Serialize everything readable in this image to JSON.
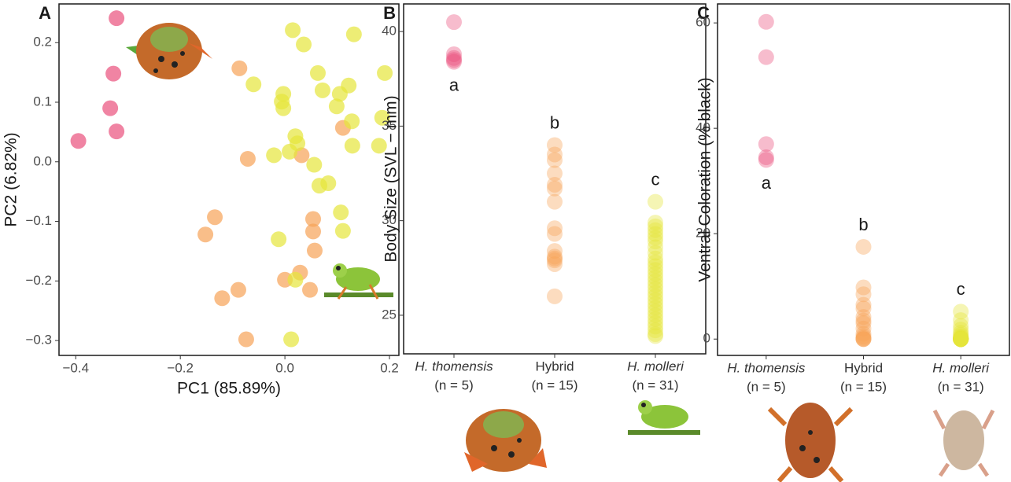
{
  "chart_data": [
    {
      "type": "scatter",
      "panel": "A",
      "x_label": "PC1 (85.89%)",
      "y_label": "PC2 (6.82%)",
      "xlim": [
        -0.432,
        0.218
      ],
      "xticks": [
        {
          "value": -0.4,
          "label": "−0.4"
        },
        {
          "value": -0.2,
          "label": "−0.2"
        },
        {
          "value": 0,
          "label": "0.0"
        },
        0.2
      ],
      "ylim": [
        -0.325,
        0.265
      ],
      "yticks": [
        {
          "value": -0.3,
          "label": "−0.3"
        },
        {
          "value": -0.2,
          "label": "−0.2"
        },
        {
          "value": -0.1,
          "label": "−0.1"
        },
        {
          "value": 0,
          "label": "0.0"
        },
        0.1,
        0.2
      ],
      "series": [
        {
          "color": "#e9507c",
          "x": [
            -0.322,
            -0.328,
            -0.334,
            -0.322,
            -0.395
          ],
          "y": [
            0.241,
            0.148,
            0.09,
            0.051,
            0.035
          ]
        },
        {
          "color": "#f7a257",
          "x": [
            -0.087,
            0.111,
            0.032,
            -0.071,
            -0.134,
            -0.152,
            0.054,
            0.054,
            0.057,
            -0.12,
            -0.089,
            0,
            0.029,
            0.048,
            -0.074
          ],
          "y": [
            0.157,
            0.057,
            0.011,
            0.005,
            -0.093,
            -0.122,
            -0.096,
            -0.117,
            -0.149,
            -0.229,
            -0.215,
            -0.198,
            -0.186,
            -0.215,
            -0.298
          ]
        },
        {
          "color": "#e6e63a",
          "x": [
            0.015,
            0.132,
            0.036,
            -0.06,
            0.191,
            0.063,
            0.072,
            0.122,
            0.105,
            -0.003,
            0.128,
            -0.006,
            0.099,
            -0.003,
            0.186,
            0.02,
            0.024,
            -0.021,
            0.009,
            0.056,
            0.083,
            0.066,
            0.18,
            0.129,
            0.107,
            0.111,
            -0.012,
            0.02,
            0.012
          ],
          "y": [
            0.221,
            0.214,
            0.197,
            0.13,
            0.149,
            0.149,
            0.12,
            0.128,
            0.114,
            0.114,
            0.068,
            0.101,
            0.093,
            0.09,
            0.074,
            0.043,
            0.031,
            0.011,
            0.017,
            -0.005,
            -0.036,
            -0.04,
            0.027,
            0.027,
            -0.085,
            -0.116,
            -0.13,
            -0.198,
            -0.298
          ]
        }
      ]
    },
    {
      "type": "strip",
      "panel": "B",
      "y_label": "Body Size (SVL − mm)",
      "categories": [
        "H. thomensis",
        "Hybrid",
        "H. molleri"
      ],
      "category_italic": [
        true,
        false,
        true
      ],
      "sample_sizes": [
        "(n = 5)",
        "(n = 15)",
        "(n = 31)"
      ],
      "group_letters": [
        "a",
        "b",
        "c"
      ],
      "colors": [
        "#e9507c",
        "#f7a257",
        "#e6e63a"
      ],
      "ylim": [
        22.96,
        41.46
      ],
      "yticks": [
        25,
        30,
        35,
        40
      ],
      "values": [
        [
          40.5,
          38.8,
          38.6,
          38.5,
          38.4
        ],
        [
          34.0,
          33.5,
          33.2,
          32.5,
          31.9,
          31.7,
          31.0,
          29.6,
          29.3,
          28.4,
          28.1,
          28.0,
          27.9,
          27.7,
          26.0
        ],
        [
          31.0,
          29.9,
          29.5,
          29.3,
          29.1,
          28.9,
          28.6,
          28.3,
          28.0,
          27.8,
          27.6,
          27.4,
          27.2,
          27.0,
          26.8,
          26.6,
          26.4,
          26.2,
          26.0,
          25.8,
          25.6,
          25.4,
          25.2,
          25.0,
          24.8,
          24.6,
          24.4,
          24.2,
          24.0,
          23.9,
          29.7
        ]
      ]
    },
    {
      "type": "strip",
      "panel": "C",
      "y_label": "Ventral Coloration (% black)",
      "categories": [
        "H. thomensis",
        "Hybrid",
        "H. molleri"
      ],
      "category_italic": [
        true,
        false,
        true
      ],
      "sample_sizes": [
        "(n = 5)",
        "(n = 15)",
        "(n = 31)"
      ],
      "group_letters": [
        "a",
        "b",
        "c"
      ],
      "colors": [
        "#e9507c",
        "#f7a257",
        "#e6e63a"
      ],
      "ylim": [
        -3.1,
        63.6
      ],
      "yticks": [
        0,
        20,
        40,
        60
      ],
      "values": [
        [
          60.2,
          53.5,
          37.0,
          34.5,
          34.0
        ],
        [
          17.5,
          9.8,
          8.5,
          6.5,
          5.8,
          4.2,
          3.5,
          3.0,
          2.0,
          1.0,
          0.5,
          0.2,
          0,
          0,
          0
        ],
        [
          5.2,
          3.6,
          2.5,
          1.8,
          1.2,
          0.8,
          0.5,
          0.3,
          0.2,
          0.1,
          0,
          0,
          0,
          0,
          0,
          0,
          0,
          0,
          0,
          0,
          0,
          0,
          0,
          0,
          0,
          0,
          0,
          0,
          0,
          0,
          0
        ]
      ]
    }
  ]
}
